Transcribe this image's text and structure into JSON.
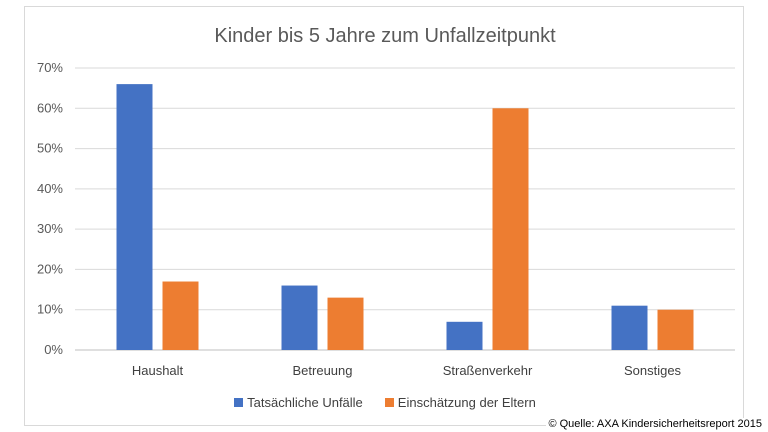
{
  "chart_data": {
    "type": "bar",
    "title": "Kinder bis 5 Jahre zum Unfallzeitpunkt",
    "categories": [
      "Haushalt",
      "Betreuung",
      "Straßenverkehr",
      "Sonstiges"
    ],
    "series": [
      {
        "name": "Tatsächliche Unfälle",
        "values": [
          66,
          16,
          7,
          11
        ],
        "color": "#4472c4"
      },
      {
        "name": "Einschätzung der Eltern",
        "values": [
          17,
          13,
          60,
          10
        ],
        "color": "#ed7d31"
      }
    ],
    "ylim": [
      0,
      70
    ],
    "yticks": [
      "0%",
      "10%",
      "20%",
      "30%",
      "40%",
      "50%",
      "60%",
      "70%"
    ],
    "grid": true,
    "legend_position": "bottom"
  },
  "source": "© Quelle: AXA Kindersicherheitsreport 2015"
}
